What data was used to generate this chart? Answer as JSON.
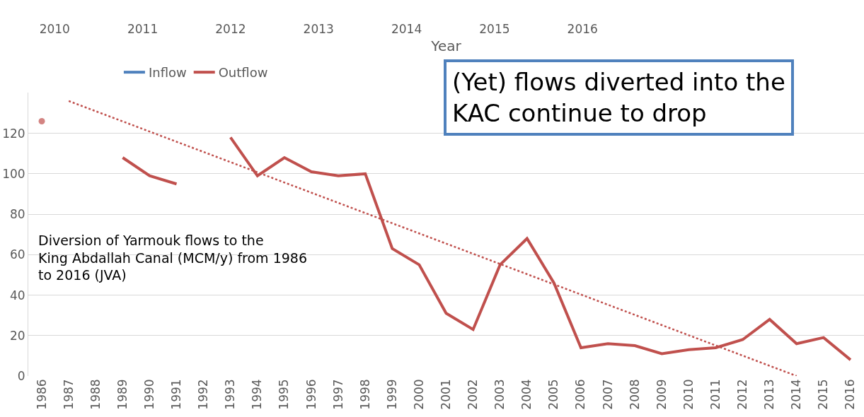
{
  "chart_data": {
    "type": "line",
    "categories": [
      "1986",
      "1987",
      "1988",
      "1989",
      "1990",
      "1991",
      "1992",
      "1993",
      "1994",
      "1995",
      "1996",
      "1997",
      "1998",
      "1999",
      "2000",
      "2001",
      "2002",
      "2003",
      "2004",
      "2005",
      "2006",
      "2007",
      "2008",
      "2009",
      "2010",
      "2011",
      "2012",
      "2013",
      "2014",
      "2015",
      "2016"
    ],
    "series": [
      {
        "name": "Inflow",
        "color": "#4f81bd",
        "values": [
          null,
          null,
          null,
          null,
          null,
          null,
          null,
          null,
          null,
          null,
          null,
          null,
          null,
          null,
          null,
          null,
          null,
          null,
          null,
          null,
          null,
          null,
          null,
          null,
          null,
          null,
          null,
          null,
          null,
          null,
          null
        ]
      },
      {
        "name": "Outflow",
        "color": "#c0504d",
        "values": [
          126,
          null,
          null,
          108,
          99,
          95,
          null,
          118,
          99,
          108,
          101,
          99,
          100,
          63,
          55,
          31,
          23,
          55,
          68,
          46,
          14,
          16,
          15,
          11,
          13,
          14,
          18,
          28,
          16,
          19,
          8
        ]
      },
      {
        "type": "line",
        "color": "#c0504d",
        "line_style": "dotted",
        "values": [
          null,
          136,
          null,
          null,
          null,
          null,
          null,
          null,
          null,
          null,
          null,
          null,
          null,
          null,
          null,
          null,
          null,
          null,
          null,
          null,
          null,
          null,
          null,
          null,
          null,
          null,
          null,
          null,
          0,
          null,
          null
        ]
      }
    ],
    "ylim": [
      0,
      140
    ],
    "yticks": [
      0,
      20,
      40,
      60,
      80,
      100,
      120
    ],
    "grid": "y",
    "legend": "top",
    "marker": "none",
    "line_style": "solid",
    "x2lim": [
      2009.7,
      2019.2
    ],
    "x2ticks": [
      2010,
      2011,
      2012,
      2013,
      2014,
      2015,
      2016
    ],
    "x2label": "Year",
    "annotations": [
      "(Yet) flows diverted into the KAC continue to drop",
      "Diversion of Yarmouk flows to the King Abdallah Canal (MCM/y) from 1986 to 2016 (JVA)"
    ]
  }
}
